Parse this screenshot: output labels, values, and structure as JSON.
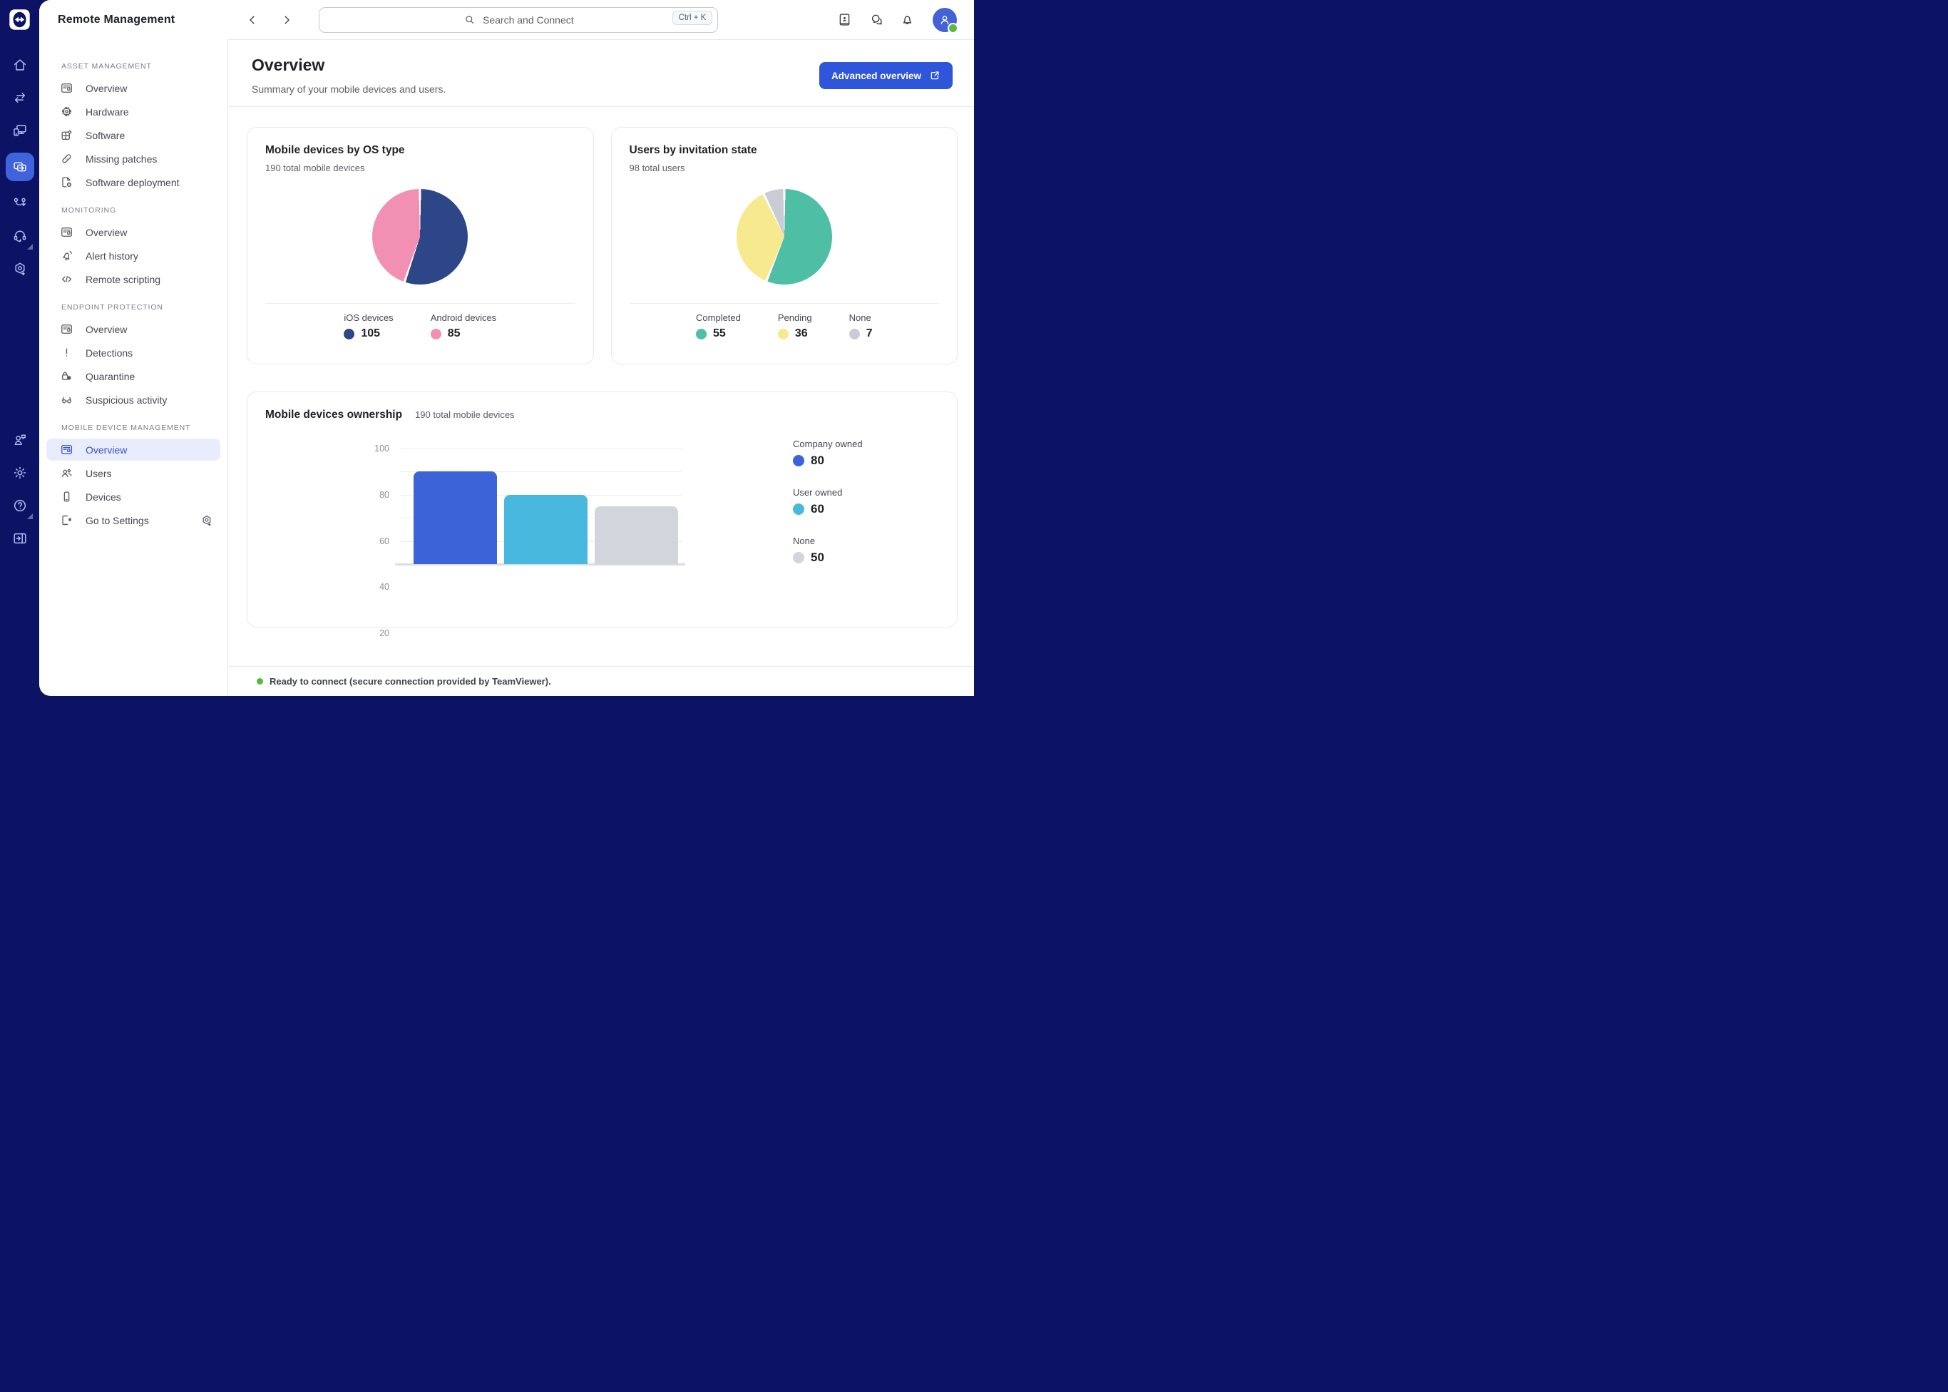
{
  "app": {
    "title": "Remote Management"
  },
  "header": {
    "search_placeholder": "Search and Connect",
    "shortcut": "Ctrl + K",
    "icons": [
      "contact-book",
      "chat",
      "notifications-bell",
      "user-avatar"
    ]
  },
  "rail": {
    "top_items": [
      {
        "icon": "home",
        "active": false,
        "badge": false
      },
      {
        "icon": "transfer-arrows",
        "active": false,
        "badge": false
      },
      {
        "icon": "devices",
        "active": false,
        "badge": false
      },
      {
        "icon": "remote-management",
        "active": true,
        "badge": false
      },
      {
        "icon": "workflow",
        "active": false,
        "badge": false
      },
      {
        "icon": "headset-support",
        "active": false,
        "badge": true
      },
      {
        "icon": "hexagon-session",
        "active": false,
        "badge": false
      }
    ],
    "bottom_items": [
      {
        "icon": "user-feedback",
        "active": false,
        "badge": false
      },
      {
        "icon": "settings-gear",
        "active": false,
        "badge": false
      },
      {
        "icon": "help-question",
        "active": false,
        "badge": true
      },
      {
        "icon": "collapse-panel",
        "active": false,
        "badge": false
      }
    ]
  },
  "sidebar": {
    "sections": [
      {
        "title": "ASSET MANAGEMENT",
        "items": [
          {
            "label": "Overview",
            "icon": "overview-list",
            "active": false
          },
          {
            "label": "Hardware",
            "icon": "cpu-chip",
            "active": false
          },
          {
            "label": "Software",
            "icon": "software-package",
            "active": false
          },
          {
            "label": "Missing patches",
            "icon": "patch-bandage",
            "active": false
          },
          {
            "label": "Software deployment",
            "icon": "deploy-download",
            "active": false
          }
        ]
      },
      {
        "title": "MONITORING",
        "items": [
          {
            "label": "Overview",
            "icon": "overview-list",
            "active": false
          },
          {
            "label": "Alert history",
            "icon": "alert-bell",
            "active": false
          },
          {
            "label": "Remote scripting",
            "icon": "code-brackets",
            "active": false
          }
        ]
      },
      {
        "title": "ENDPOINT PROTECTION",
        "items": [
          {
            "label": "Overview",
            "icon": "overview-list",
            "active": false
          },
          {
            "label": "Detections",
            "icon": "exclamation",
            "active": false
          },
          {
            "label": "Quarantine",
            "icon": "lock-shield",
            "active": false
          },
          {
            "label": "Suspicious activity",
            "icon": "spy-glasses",
            "active": false
          }
        ]
      },
      {
        "title": "MOBILE DEVICE MANAGEMENT",
        "items": [
          {
            "label": "Overview",
            "icon": "overview-list",
            "active": true
          },
          {
            "label": "Users",
            "icon": "users-group",
            "active": false
          },
          {
            "label": "Devices",
            "icon": "mobile-phone",
            "active": false
          },
          {
            "label": "Go to Settings",
            "icon": "settings-file",
            "active": false,
            "trailing_icon": "hexagon-arrow"
          }
        ]
      }
    ]
  },
  "page": {
    "title": "Overview",
    "subtitle": "Summary of your mobile devices and users.",
    "primary_button": "Advanced overview"
  },
  "chart_data": [
    {
      "type": "pie",
      "title": "Mobile devices by OS type",
      "subtitle": "190 total mobile devices",
      "total": 190,
      "slices": [
        {
          "label": "iOS devices",
          "value": 105,
          "color": "#2d4687"
        },
        {
          "label": "Android devices",
          "value": 85,
          "color": "#f190b3"
        }
      ]
    },
    {
      "type": "pie",
      "title": "Users by invitation state",
      "subtitle": "98 total users",
      "total": 98,
      "slices": [
        {
          "label": "Completed",
          "value": 55,
          "color": "#4ebfa5"
        },
        {
          "label": "Pending",
          "value": 36,
          "color": "#f7e98e"
        },
        {
          "label": "None",
          "value": 7,
          "color": "#c9ccd4"
        }
      ]
    },
    {
      "type": "bar",
      "title": "Mobile devices ownership",
      "subtitle": "190 total mobile devices",
      "categories": [
        "Company owned",
        "User owned",
        "None"
      ],
      "values": [
        80,
        60,
        50
      ],
      "colors": [
        "#3c63d8",
        "#48b8df",
        "#d3d5dc"
      ],
      "ylim": [
        0,
        100
      ],
      "yticks": [
        20,
        40,
        60,
        80,
        100
      ],
      "grid": true,
      "legend_position": "right"
    }
  ],
  "status_bar": {
    "text": "Ready to connect (secure connection provided by TeamViewer)."
  },
  "colors": {
    "rail_bg": "#0c1365",
    "accent_blue": "#2e55da",
    "active_item_bg": "#e9edfb",
    "active_item_fg": "#3452d1",
    "online_green": "#56bb3e",
    "border": "#e8e9ec"
  }
}
